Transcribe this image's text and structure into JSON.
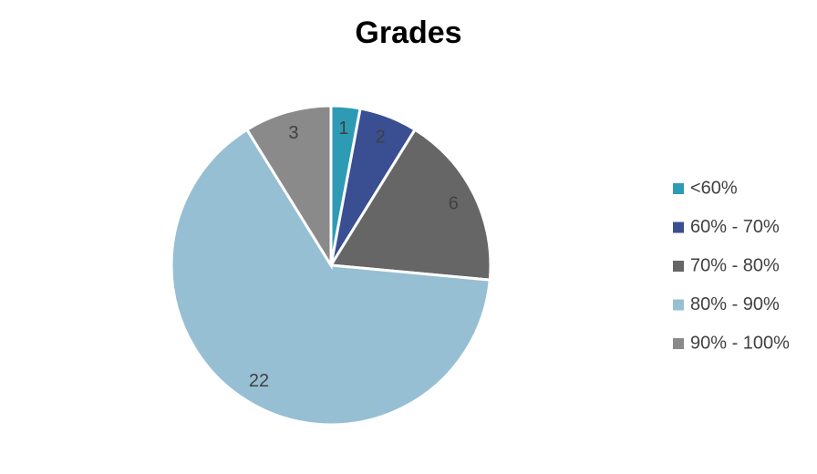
{
  "chart_data": {
    "type": "pie",
    "title": "Grades",
    "categories": [
      "<60%",
      "60% - 70%",
      "70% - 80%",
      "80% - 90%",
      "90% - 100%"
    ],
    "values": [
      1,
      2,
      6,
      22,
      3
    ],
    "colors": [
      "#2e9bb5",
      "#3a4e92",
      "#666666",
      "#97bfd3",
      "#8a8a8a"
    ],
    "legend": "right"
  }
}
